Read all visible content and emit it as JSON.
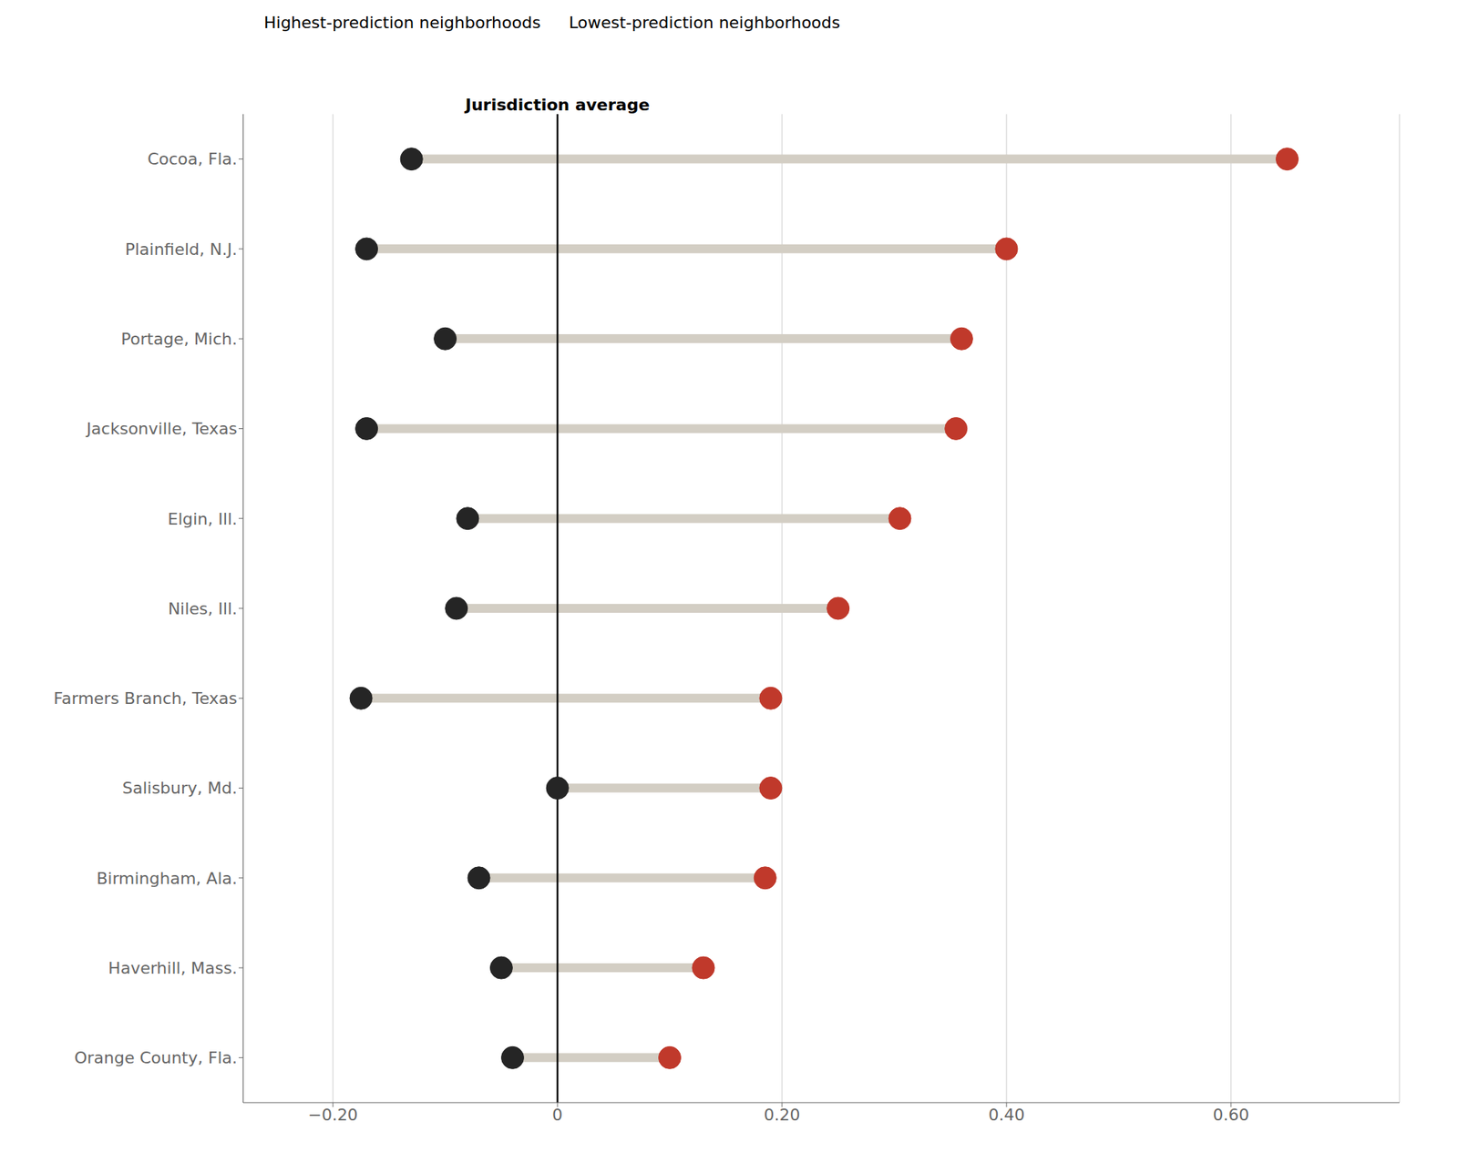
{
  "chart_data": {
    "type": "dumbbell",
    "orientation": "horizontal",
    "categories": [
      "Cocoa, Fla.",
      "Plainfield, N.J.",
      "Portage, Mich.",
      "Jacksonville, Texas",
      "Elgin, Ill.",
      "Niles, Ill.",
      "Farmers Branch, Texas",
      "Salisbury, Md.",
      "Birmingham, Ala.",
      "Haverhill, Mass.",
      "Orange County, Fla."
    ],
    "series": [
      {
        "name": "Lowest-prediction neighborhoods",
        "color": "#252525",
        "marker": "circle",
        "values": [
          -0.13,
          -0.17,
          -0.1,
          -0.17,
          -0.08,
          -0.09,
          -0.175,
          0.0,
          -0.07,
          -0.05,
          -0.04
        ]
      },
      {
        "name": "Highest-prediction neighborhoods",
        "color": "#c0392b",
        "marker": "circle",
        "values": [
          0.65,
          0.4,
          0.36,
          0.355,
          0.305,
          0.25,
          0.19,
          0.19,
          0.185,
          0.13,
          0.1
        ]
      }
    ],
    "color": "#d3cec4",
    "xlim": [
      -0.28,
      0.75
    ],
    "xticks": [
      {
        "value": -0.2,
        "label": "−0.20"
      },
      0,
      {
        "value": 0.2,
        "label": "0.20"
      },
      {
        "value": 0.4,
        "label": "0.40"
      },
      {
        "value": 0.6,
        "label": "0.60"
      }
    ],
    "grid": true,
    "legend": "top",
    "annotations": [
      {
        "text": "Jurisdiction average",
        "x": 0
      }
    ]
  }
}
